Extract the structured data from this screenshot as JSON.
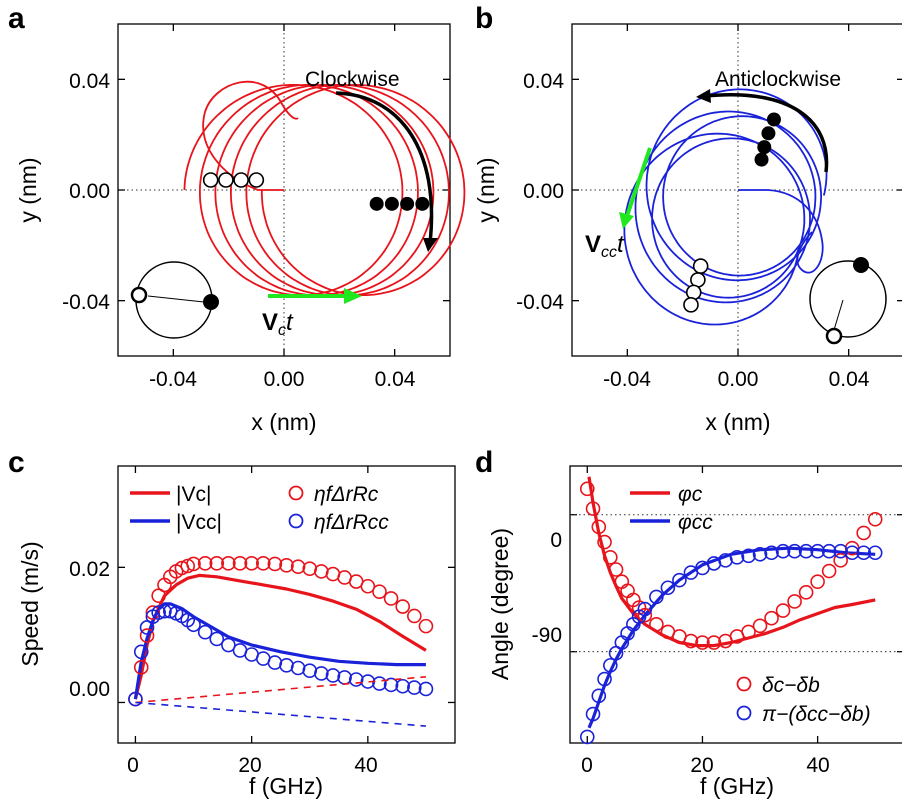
{
  "panels": {
    "a": {
      "letter": "a",
      "ylabel": "y (nm)",
      "xlabel": "x (nm)",
      "xticks": [
        "-0.04",
        "0.00",
        "0.04"
      ],
      "yticks": [
        "0.04",
        "0.00",
        "-0.04"
      ],
      "annotation": "Clockwise",
      "drift_label_main": "V",
      "drift_label_sub": "c",
      "drift_label_tail": "t"
    },
    "b": {
      "letter": "b",
      "ylabel": "y (nm)",
      "xlabel": "x (nm)",
      "xticks": [
        "-0.04",
        "0.00",
        "0.04"
      ],
      "yticks": [
        "0.04",
        "0.00",
        "-0.04"
      ],
      "annotation": "Anticlockwise",
      "drift_label_main": "V",
      "drift_label_sub": "cc",
      "drift_label_tail": "t"
    },
    "c": {
      "letter": "c",
      "ylabel": "Speed (m/s)",
      "xlabel": "f (GHz)",
      "xticks": [
        "0",
        "20",
        "40"
      ],
      "yticks": [
        "0.02",
        "0.00"
      ]
    },
    "d": {
      "letter": "d",
      "ylabel": "Angle (degree)",
      "xlabel": "f (GHz)",
      "xticks": [
        "0",
        "20",
        "40"
      ],
      "yticks": [
        "0",
        "-90"
      ]
    }
  },
  "colors": {
    "red": "#e8141b",
    "blue": "#1a22d9",
    "green": "#1fe81f",
    "black": "#000000"
  },
  "chart_data": [
    {
      "type": "line",
      "panel": "a",
      "title": "",
      "xlabel": "x (nm)",
      "ylabel": "y (nm)",
      "xlim": [
        -0.06,
        0.06
      ],
      "ylim": [
        -0.06,
        0.06
      ],
      "grid": "dotted zero lines",
      "series": [
        {
          "type": "trajectory",
          "color": "red",
          "loops": 5,
          "center": [
            0.012,
            0.0
          ],
          "radius": 0.038,
          "drift_per_loop": [
            0.0056,
            0.0
          ]
        }
      ],
      "markers": {
        "open_x": [
          -0.0265,
          -0.021,
          -0.0155,
          -0.01
        ],
        "open_y": 0.0,
        "filled_x": [
          0.0335,
          0.039,
          0.0445,
          0.05
        ],
        "filled_y": -0.005
      },
      "annotations": [
        "Clockwise",
        "Vct"
      ]
    },
    {
      "type": "line",
      "panel": "b",
      "title": "",
      "xlabel": "x (nm)",
      "ylabel": "y (nm)",
      "xlim": [
        -0.06,
        0.06
      ],
      "ylim": [
        -0.06,
        0.06
      ],
      "grid": "dotted zero lines",
      "series": [
        {
          "type": "trajectory",
          "color": "blue",
          "loops": 5,
          "center": [
            0.0,
            -0.004
          ],
          "radius": 0.03,
          "drift_per_loop": [
            -0.002,
            -0.004
          ]
        }
      ],
      "markers": {
        "filled": [
          [
            0.0085,
            0.011
          ],
          [
            0.0095,
            0.0155
          ],
          [
            0.011,
            0.0205
          ],
          [
            0.013,
            0.0255
          ]
        ],
        "open": [
          [
            -0.0135,
            -0.0275
          ],
          [
            -0.0145,
            -0.0325
          ],
          [
            -0.016,
            -0.037
          ],
          [
            -0.017,
            -0.0415
          ]
        ]
      },
      "annotations": [
        "Anticlockwise",
        "Vcct"
      ]
    },
    {
      "type": "line",
      "panel": "c",
      "xlabel": "f (GHz)",
      "ylabel": "Speed (m/s)",
      "xlim": [
        -3,
        55
      ],
      "ylim": [
        -0.006,
        0.035
      ],
      "legend": [
        "|Vc|",
        "|Vcc|",
        "ηfΔrRc",
        "ηfΔrRcc"
      ],
      "series": [
        {
          "name": "|Vc|",
          "style": "solid",
          "color": "red",
          "x": [
            0,
            1,
            2,
            3,
            4,
            5,
            7,
            9,
            11,
            14,
            18,
            22,
            26,
            30,
            34,
            38,
            42,
            46,
            50
          ],
          "y": [
            0.0005,
            0.004,
            0.0085,
            0.012,
            0.014,
            0.0158,
            0.0174,
            0.0184,
            0.0188,
            0.0186,
            0.018,
            0.0174,
            0.0168,
            0.016,
            0.015,
            0.0138,
            0.012,
            0.0098,
            0.0077
          ]
        },
        {
          "name": "|Vcc|",
          "style": "solid",
          "color": "blue",
          "x": [
            0,
            1,
            2,
            3,
            4,
            5,
            6,
            8,
            10,
            13,
            16,
            20,
            25,
            30,
            35,
            40,
            45,
            50
          ],
          "y": [
            0.0005,
            0.006,
            0.0095,
            0.0121,
            0.0138,
            0.0146,
            0.0146,
            0.0139,
            0.0127,
            0.0112,
            0.0097,
            0.0085,
            0.0075,
            0.0067,
            0.0061,
            0.0058,
            0.0056,
            0.0056
          ]
        },
        {
          "name": "ηfΔrRc",
          "style": "markers",
          "color": "red",
          "x": [
            0,
            1,
            2,
            3,
            4,
            5,
            6,
            7,
            8,
            9,
            10,
            12,
            14,
            16,
            18,
            20,
            22,
            24,
            26,
            28,
            30,
            32,
            34,
            36,
            38,
            40,
            42,
            44,
            46,
            48,
            50
          ],
          "y": [
            0.0005,
            0.0052,
            0.0099,
            0.0133,
            0.0158,
            0.0174,
            0.0186,
            0.0194,
            0.0199,
            0.0202,
            0.0205,
            0.0206,
            0.0206,
            0.0206,
            0.0206,
            0.0206,
            0.0206,
            0.0205,
            0.0203,
            0.0201,
            0.0198,
            0.0194,
            0.019,
            0.0185,
            0.0179,
            0.0172,
            0.0164,
            0.0154,
            0.0142,
            0.0128,
            0.0113
          ]
        },
        {
          "name": "ηfΔrRcc",
          "style": "markers",
          "color": "blue",
          "x": [
            0,
            1,
            2,
            3,
            4,
            5,
            6,
            7,
            8,
            9,
            10,
            12,
            14,
            16,
            18,
            20,
            22,
            24,
            26,
            28,
            30,
            32,
            34,
            36,
            38,
            40,
            42,
            44,
            46,
            48,
            50
          ],
          "y": [
            0.0005,
            0.0075,
            0.0111,
            0.0127,
            0.0133,
            0.0135,
            0.0135,
            0.0132,
            0.0128,
            0.0122,
            0.0115,
            0.0104,
            0.0094,
            0.0085,
            0.0077,
            0.0071,
            0.0065,
            0.0059,
            0.0055,
            0.0051,
            0.0047,
            0.0043,
            0.004,
            0.0037,
            0.0034,
            0.0031,
            0.0028,
            0.0026,
            0.0024,
            0.0022,
            0.002
          ]
        },
        {
          "name": "",
          "style": "dashed",
          "color": "red",
          "x": [
            0,
            50
          ],
          "y": [
            0.0,
            0.0038
          ]
        },
        {
          "name": "",
          "style": "dashed",
          "color": "blue",
          "x": [
            0,
            50
          ],
          "y": [
            0.0,
            -0.0035
          ]
        }
      ]
    },
    {
      "type": "line",
      "panel": "d",
      "xlabel": "f (GHz)",
      "ylabel": "Angle (degree)",
      "xlim": [
        -3,
        55
      ],
      "ylim": [
        -150,
        32
      ],
      "grid": "dotted lines at 0 and -90",
      "legend": [
        "φc",
        "φcc",
        "δc−δb",
        "π−(δcc−δb)"
      ],
      "series": [
        {
          "name": "φc",
          "style": "solid",
          "color": "red",
          "x": [
            0.3,
            1,
            2,
            3,
            4,
            5,
            6,
            8,
            10,
            13,
            16,
            19,
            22,
            25,
            28,
            31,
            34,
            37,
            40,
            43,
            46,
            50
          ],
          "y": [
            25,
            8,
            -12,
            -27,
            -38,
            -47,
            -55,
            -65,
            -72,
            -79,
            -84,
            -86,
            -86,
            -84,
            -81,
            -78,
            -74,
            -69,
            -65,
            -61,
            -59,
            -56
          ]
        },
        {
          "name": "φcc",
          "style": "solid",
          "color": "blue",
          "x": [
            0.3,
            1,
            2,
            3,
            4,
            5,
            6,
            8,
            10,
            13,
            16,
            20,
            25,
            30,
            35,
            40,
            45,
            50
          ],
          "y": [
            -140,
            -134,
            -123,
            -112,
            -103,
            -95,
            -88,
            -76,
            -66,
            -53,
            -43,
            -33,
            -26,
            -23,
            -22,
            -23,
            -25,
            -26
          ]
        },
        {
          "name": "δc−δb",
          "style": "markers",
          "color": "red",
          "x": [
            0,
            1,
            2,
            3,
            4,
            5,
            6,
            7,
            8,
            9,
            10,
            12,
            14,
            16,
            18,
            20,
            22,
            24,
            26,
            28,
            30,
            32,
            34,
            36,
            38,
            40,
            42,
            44,
            46,
            48,
            50
          ],
          "y": [
            17,
            4,
            -8,
            -18,
            -28,
            -36,
            -44,
            -50,
            -56,
            -61,
            -66,
            -72,
            -77,
            -80,
            -83,
            -84,
            -84,
            -83,
            -80,
            -77,
            -73,
            -68,
            -63,
            -57,
            -51,
            -44,
            -37,
            -30,
            -22,
            -12,
            -3
          ]
        },
        {
          "name": "π−(δcc−δb)",
          "style": "markers",
          "color": "blue",
          "x": [
            0,
            1,
            2,
            3,
            4,
            5,
            6,
            7,
            8,
            9,
            10,
            12,
            14,
            16,
            18,
            20,
            22,
            24,
            26,
            28,
            30,
            32,
            34,
            36,
            38,
            40,
            42,
            44,
            46,
            48,
            50
          ],
          "y": [
            -146,
            -131,
            -119,
            -108,
            -99,
            -91,
            -84,
            -78,
            -72,
            -67,
            -62,
            -54,
            -48,
            -43,
            -38,
            -35,
            -32,
            -30,
            -28,
            -27,
            -26,
            -25,
            -24,
            -24,
            -24,
            -24,
            -24,
            -24,
            -25,
            -25,
            -25
          ]
        }
      ]
    }
  ]
}
